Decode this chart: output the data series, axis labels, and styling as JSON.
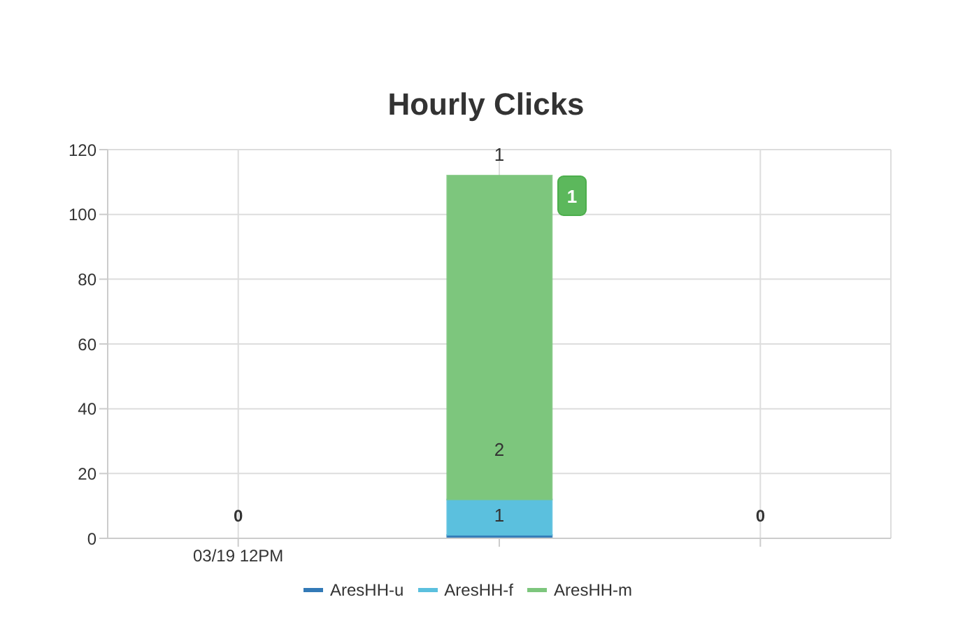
{
  "chart_data": {
    "type": "bar",
    "title": "Hourly Clicks",
    "categories": [
      "03/19 12PM",
      null,
      null
    ],
    "stacked": true,
    "series": [
      {
        "name": "AresHH-u",
        "color": "#337ab7",
        "values": [
          0,
          1,
          0
        ]
      },
      {
        "name": "AresHH-f",
        "color": "#5bc0de",
        "values": [
          0,
          11,
          0
        ]
      },
      {
        "name": "AresHH-m",
        "color": "#7dc67d",
        "values": [
          0,
          100,
          0
        ]
      }
    ],
    "totals": [
      "0",
      null,
      "0"
    ],
    "annotations": [
      "1",
      "2",
      "1",
      "1"
    ],
    "ylim": [
      0,
      120
    ],
    "yticks": [
      0,
      20,
      40,
      60,
      80,
      100,
      120
    ],
    "grid": true,
    "legend": "bottom"
  }
}
